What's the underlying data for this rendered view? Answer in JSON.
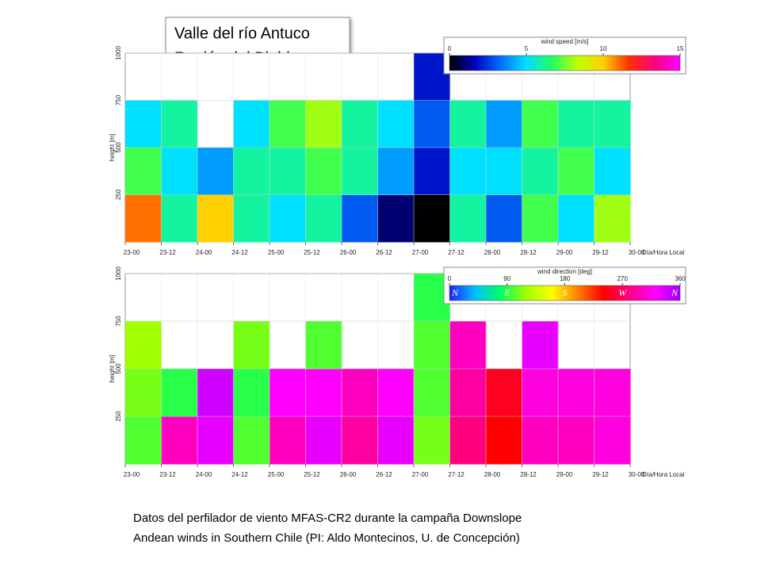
{
  "slide": {
    "title": [
      "Valle del río Antuco",
      "Región del Biobio"
    ],
    "caption": [
      "Datos del perfilador de viento MFAS-CR2 durante la campaña Downslope",
      "Andean winds in Southern Chile (PI: Aldo Montecinos, U. de Concepción)"
    ]
  },
  "chart_data": [
    {
      "type": "heatmap",
      "ylabel": "height [m]",
      "xlabel": "Día/Hora Local",
      "categories": [
        "23-00",
        "23-12",
        "24-00",
        "24-12",
        "25-00",
        "25-12",
        "26-00",
        "26-12",
        "27-00",
        "27-12",
        "28-00",
        "28-12",
        "29-00",
        "29-12",
        "30-00"
      ],
      "ylim": [
        0,
        1000
      ],
      "yticks": [
        250,
        500,
        750,
        1000
      ],
      "grid": true,
      "values": [
        [
          11,
          7,
          5,
          null
        ],
        [
          6,
          5,
          6,
          null
        ],
        [
          10,
          4,
          null,
          null
        ],
        [
          6,
          6,
          5,
          null
        ],
        [
          5,
          6,
          7,
          null
        ],
        [
          6,
          7,
          8,
          null
        ],
        [
          3,
          6,
          6,
          null
        ],
        [
          1,
          4,
          5,
          null
        ],
        [
          0,
          2,
          3,
          2
        ],
        [
          6,
          5,
          6,
          null
        ],
        [
          3,
          5,
          4,
          null
        ],
        [
          7,
          6,
          7,
          null
        ],
        [
          5,
          7,
          6,
          null
        ],
        [
          8,
          5,
          6,
          null
        ]
      ],
      "colorbar": {
        "label": "wind speed [m/s]",
        "zlim": [
          0,
          15
        ],
        "zticks": [
          0,
          5,
          10,
          15
        ],
        "colormap": [
          "#000000",
          "#0000c0",
          "#0070ff",
          "#00e0ff",
          "#20ff60",
          "#c0ff00",
          "#ffd000",
          "#ff3000",
          "#ff0080",
          "#ff00ff"
        ]
      }
    },
    {
      "type": "heatmap",
      "ylabel": "height [m]",
      "xlabel": "Día/Hora Local",
      "categories": [
        "23-00",
        "23-12",
        "24-00",
        "24-12",
        "25-00",
        "25-12",
        "26-00",
        "26-12",
        "27-00",
        "27-12",
        "28-00",
        "28-12",
        "29-00",
        "29-12",
        "30-00"
      ],
      "ylim": [
        0,
        1000
      ],
      "yticks": [
        250,
        500,
        750,
        1000
      ],
      "grid": true,
      "values": [
        [
          100,
          110,
          120,
          null
        ],
        [
          300,
          90,
          null,
          null
        ],
        [
          330,
          340,
          null,
          null
        ],
        [
          100,
          90,
          110,
          null
        ],
        [
          300,
          320,
          null,
          null
        ],
        [
          330,
          320,
          100,
          null
        ],
        [
          290,
          300,
          null,
          null
        ],
        [
          330,
          320,
          null,
          null
        ],
        [
          110,
          100,
          100,
          90
        ],
        [
          280,
          290,
          300,
          null
        ],
        [
          240,
          250,
          null,
          null
        ],
        [
          300,
          310,
          330,
          null
        ],
        [
          300,
          310,
          null,
          null
        ],
        [
          310,
          310,
          null,
          null
        ]
      ],
      "colorbar": {
        "label": "wind direction [deg]",
        "zlim": [
          0,
          360
        ],
        "zticks": [
          0,
          90,
          180,
          270,
          360
        ],
        "direction_labels": [
          "N",
          "E",
          "S",
          "W",
          "N"
        ],
        "colormap": [
          "#2020ff",
          "#00c0ff",
          "#00ff60",
          "#a0ff00",
          "#ffff00",
          "#ff8000",
          "#ff0000",
          "#ff0080",
          "#ff00ff",
          "#a000ff"
        ]
      }
    }
  ]
}
